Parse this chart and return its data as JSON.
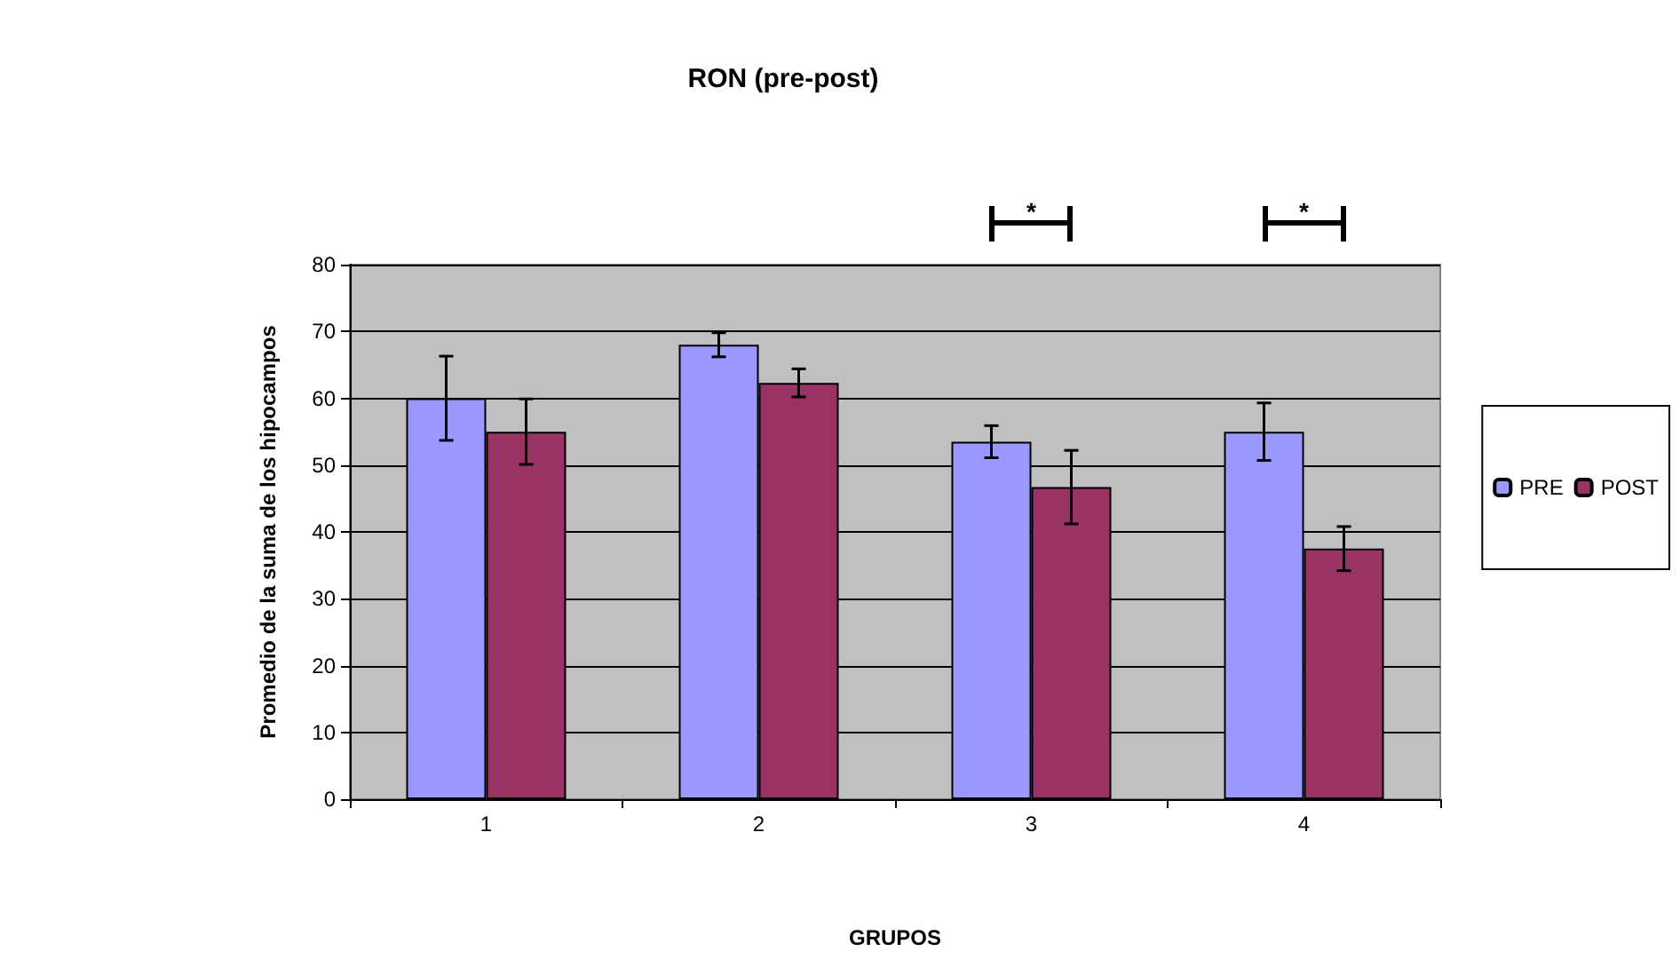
{
  "chart_data": {
    "type": "bar",
    "title": "RON (pre-post)",
    "xlabel": "GRUPOS",
    "ylabel": "Promedio de la suma de los hipocampos",
    "categories": [
      "1",
      "2",
      "3",
      "4"
    ],
    "series": [
      {
        "name": "PRE",
        "color": "#9999ff",
        "values": [
          60,
          68,
          53.5,
          55
        ],
        "errors": [
          6.3,
          1.8,
          2.4,
          4.3
        ]
      },
      {
        "name": "POST",
        "color": "#993366",
        "values": [
          55,
          62.3,
          46.7,
          37.5
        ],
        "errors": [
          4.9,
          2.1,
          5.5,
          3.3
        ]
      }
    ],
    "annotations": [
      "*",
      "*"
    ],
    "ylim": [
      0,
      80
    ],
    "yticks": [
      0,
      10,
      20,
      30,
      40,
      50,
      60,
      70,
      80
    ],
    "grid": "y",
    "legend": "right"
  }
}
